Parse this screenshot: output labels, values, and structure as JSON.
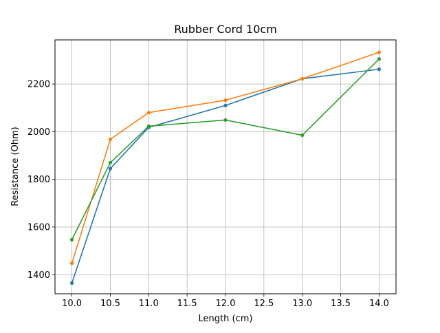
{
  "chart_data": {
    "type": "line",
    "title": "Rubber Cord 10cm",
    "xlabel": "Length (cm)",
    "ylabel": "Resistance (Ohm)",
    "xlim": [
      9.78,
      14.22
    ],
    "ylim": [
      1320,
      2385
    ],
    "grid": true,
    "x_ticks": [
      10.0,
      10.5,
      11.0,
      11.5,
      12.0,
      12.5,
      13.0,
      13.5,
      14.0
    ],
    "x_tick_labels": [
      "10.0",
      "10.5",
      "11.0",
      "11.5",
      "12.0",
      "12.5",
      "13.0",
      "13.5",
      "14.0"
    ],
    "y_ticks": [
      1400,
      1600,
      1800,
      2000,
      2200
    ],
    "y_tick_labels": [
      "1400",
      "1600",
      "1800",
      "2000",
      "2200"
    ],
    "x": [
      10.0,
      10.5,
      11.0,
      12.0,
      13.0,
      14.0
    ],
    "series": [
      {
        "color": "#1f77b4",
        "values": [
          1365,
          1845,
          2018,
          2110,
          2222,
          2262
        ]
      },
      {
        "color": "#ff7f0e",
        "values": [
          1448,
          1968,
          2080,
          2132,
          2222,
          2333
        ]
      },
      {
        "color": "#2ca02c",
        "values": [
          1547,
          1870,
          2023,
          2049,
          1985,
          2305
        ]
      }
    ]
  }
}
